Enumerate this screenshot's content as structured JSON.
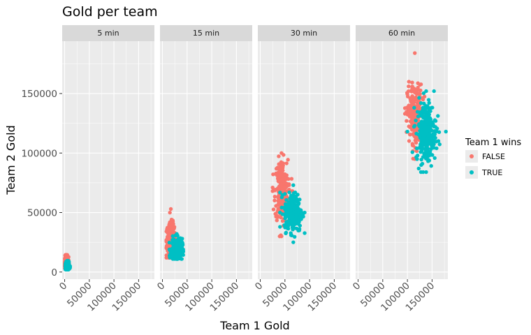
{
  "chart_data": {
    "type": "scatter",
    "title": "Gold per team",
    "xlabel": "Team 1 Gold",
    "ylabel": "Team 2 Gold",
    "xlim": [
      -5000,
      182000
    ],
    "ylim": [
      -6000,
      194000
    ],
    "x_ticks": [
      0,
      50000,
      100000,
      150000
    ],
    "x_tick_labels": [
      "0",
      "50000",
      "100000",
      "150000"
    ],
    "y_ticks": [
      0,
      50000,
      100000,
      150000
    ],
    "y_tick_labels": [
      "0",
      "50000",
      "100000",
      "150000"
    ],
    "grid": true,
    "facets": [
      "5 min",
      "15 min",
      "30 min",
      "60 min"
    ],
    "legend": {
      "title": "Team 1 wins",
      "position": "right",
      "entries": [
        {
          "label": "FALSE",
          "color": "#F8766D"
        },
        {
          "label": "TRUE",
          "color": "#00BFC4"
        }
      ]
    },
    "series": [
      {
        "legend_label": "FALSE",
        "color": "#F8766D",
        "clusters": [
          {
            "facet": "5 min",
            "x_center": 3500,
            "y_center": 7500,
            "x_spread": 2200,
            "y_spread": 3000,
            "x_range": [
              500,
              9000
            ],
            "y_range": [
              3000,
              14500
            ]
          },
          {
            "facet": "15 min",
            "x_center": 17000,
            "y_center": 27000,
            "x_spread": 4500,
            "y_spread": 7000,
            "x_range": [
              8000,
              30000
            ],
            "y_range": [
              12000,
              53000
            ]
          },
          {
            "facet": "30 min",
            "x_center": 43000,
            "y_center": 68000,
            "x_spread": 6500,
            "y_spread": 13000,
            "x_range": [
              25000,
              65000
            ],
            "y_range": [
              30000,
              100000
            ]
          },
          {
            "facet": "60 min",
            "x_center": 115000,
            "y_center": 133000,
            "x_spread": 7500,
            "y_spread": 12000,
            "x_range": [
              95000,
              140000
            ],
            "y_range": [
              95000,
              184000
            ]
          }
        ]
      },
      {
        "legend_label": "TRUE",
        "color": "#00BFC4",
        "clusters": [
          {
            "facet": "5 min",
            "x_center": 5500,
            "y_center": 5000,
            "x_spread": 2000,
            "y_spread": 1600,
            "x_range": [
              1500,
              11000
            ],
            "y_range": [
              2000,
              9500
            ]
          },
          {
            "facet": "15 min",
            "x_center": 29000,
            "y_center": 19000,
            "x_spread": 5500,
            "y_spread": 4500,
            "x_range": [
              14000,
              42000
            ],
            "y_range": [
              11000,
              32000
            ]
          },
          {
            "facet": "30 min",
            "x_center": 67000,
            "y_center": 50000,
            "x_spread": 9000,
            "y_spread": 8000,
            "x_range": [
              40000,
              90000
            ],
            "y_range": [
              25000,
              73000
            ]
          },
          {
            "facet": "60 min",
            "x_center": 138000,
            "y_center": 118000,
            "x_spread": 10000,
            "y_spread": 13000,
            "x_range": [
              100000,
              178000
            ],
            "y_range": [
              84000,
              152000
            ]
          }
        ]
      }
    ]
  }
}
